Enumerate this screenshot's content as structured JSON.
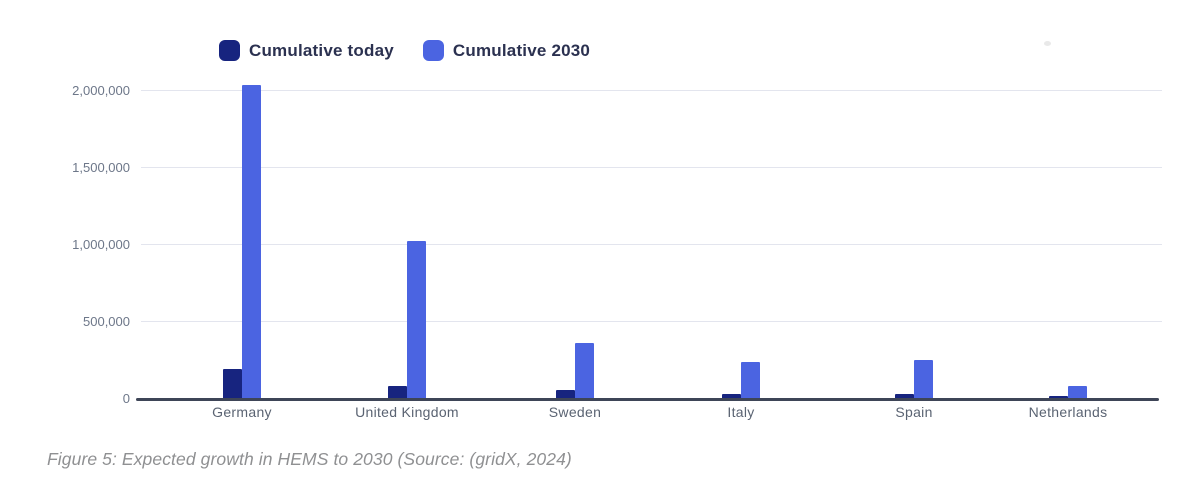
{
  "figure": {
    "caption": "Figure 5: Expected growth in HEMS to 2030 (Source: (gridX, 2024)"
  },
  "legend": {
    "items": [
      {
        "label": "Cumulative today",
        "color": "#17247f"
      },
      {
        "label": "Cumulative 2030",
        "color": "#4b64e1"
      }
    ]
  },
  "colors": {
    "today_bar": "#17247f",
    "future_bar": "#4b64e1",
    "gridline": "#e3e5ee",
    "axis_line": "#3e4557",
    "y_tick_label": "#6d7789",
    "x_tick_label": "#5a6372",
    "legend_text": "#2b3150",
    "caption_text": "#8f9092",
    "background": "#ffffff"
  },
  "chart_data": {
    "type": "bar",
    "title": "",
    "xlabel": "",
    "ylabel": "",
    "categories": [
      "Germany",
      "United Kingdom",
      "Sweden",
      "Italy",
      "Spain",
      "Netherlands"
    ],
    "series": [
      {
        "name": "Cumulative today",
        "color": "#17247f",
        "values": [
          190000,
          80000,
          55000,
          25000,
          25000,
          15000
        ]
      },
      {
        "name": "Cumulative 2030",
        "color": "#4b64e1",
        "values": [
          2030000,
          1020000,
          360000,
          235000,
          250000,
          80000
        ]
      }
    ],
    "ylim": [
      0,
      2100000
    ],
    "yticks": [
      {
        "value": 0,
        "label": "0"
      },
      {
        "value": 500000,
        "label": "500,000"
      },
      {
        "value": 1000000,
        "label": "1,000,000"
      },
      {
        "value": 1500000,
        "label": "1,500,000"
      },
      {
        "value": 2000000,
        "label": "2,000,000"
      }
    ],
    "grid": "horizontal",
    "legend_position": "top"
  }
}
